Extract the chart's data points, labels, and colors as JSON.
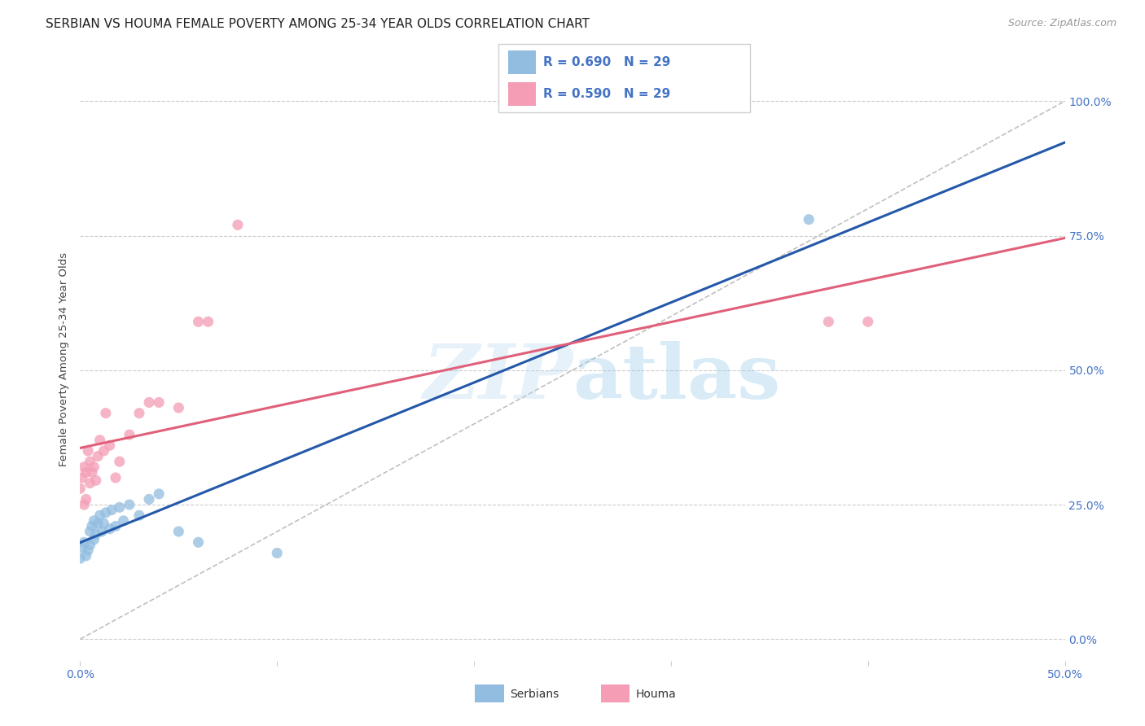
{
  "title": "SERBIAN VS HOUMA FEMALE POVERTY AMONG 25-34 YEAR OLDS CORRELATION CHART",
  "source": "Source: ZipAtlas.com",
  "ylabel_label": "Female Poverty Among 25-34 Year Olds",
  "xlim": [
    0.0,
    0.5
  ],
  "ylim": [
    -0.04,
    1.08
  ],
  "watermark": "ZIPatlas",
  "serbian_color": "#92bde0",
  "houma_color": "#f49db5",
  "serbian_line_color": "#2458a8",
  "houma_line_color": "#e0607a",
  "diagonal_color": "#c0c0c0",
  "grid_color": "#cccccc",
  "background_color": "#ffffff",
  "title_fontsize": 11,
  "axis_label_fontsize": 9.5,
  "tick_fontsize": 10,
  "tick_color": "#4472c4",
  "source_fontsize": 9,
  "source_color": "#999999",
  "x_tick_vals": [
    0.0,
    0.1,
    0.2,
    0.3,
    0.4,
    0.5
  ],
  "x_tick_labels": [
    "0.0%",
    "",
    "",
    "",
    "",
    "50.0%"
  ],
  "y_tick_vals": [
    0.0,
    0.25,
    0.5,
    0.75,
    1.0
  ],
  "y_tick_labels": [
    "0.0%",
    "25.0%",
    "50.0%",
    "75.0%",
    "100.0%"
  ],
  "serbian_x": [
    0.0,
    0.001,
    0.002,
    0.003,
    0.004,
    0.005,
    0.005,
    0.006,
    0.007,
    0.007,
    0.008,
    0.009,
    0.01,
    0.011,
    0.012,
    0.013,
    0.015,
    0.016,
    0.018,
    0.02,
    0.022,
    0.025,
    0.03,
    0.035,
    0.04,
    0.05,
    0.06,
    0.1,
    0.37
  ],
  "serbian_y": [
    0.15,
    0.17,
    0.18,
    0.155,
    0.165,
    0.2,
    0.175,
    0.21,
    0.185,
    0.22,
    0.195,
    0.215,
    0.23,
    0.2,
    0.215,
    0.235,
    0.205,
    0.24,
    0.21,
    0.245,
    0.22,
    0.25,
    0.23,
    0.26,
    0.27,
    0.2,
    0.18,
    0.16,
    0.78
  ],
  "houma_x": [
    0.0,
    0.001,
    0.002,
    0.002,
    0.003,
    0.003,
    0.004,
    0.005,
    0.005,
    0.006,
    0.007,
    0.008,
    0.009,
    0.01,
    0.012,
    0.013,
    0.015,
    0.018,
    0.02,
    0.025,
    0.03,
    0.035,
    0.04,
    0.05,
    0.06,
    0.065,
    0.08,
    0.38,
    0.4
  ],
  "houma_y": [
    0.28,
    0.3,
    0.25,
    0.32,
    0.26,
    0.31,
    0.35,
    0.29,
    0.33,
    0.31,
    0.32,
    0.295,
    0.34,
    0.37,
    0.35,
    0.42,
    0.36,
    0.3,
    0.33,
    0.38,
    0.42,
    0.44,
    0.44,
    0.43,
    0.59,
    0.59,
    0.77,
    0.59,
    0.59
  ]
}
